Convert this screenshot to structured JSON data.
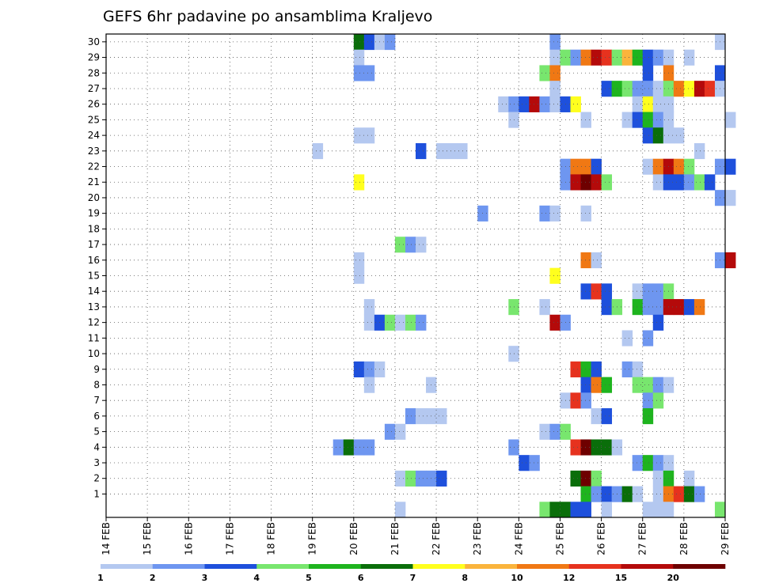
{
  "chart_data": {
    "type": "heatmap",
    "title": "GEFS 6hr padavine po ansamblima Kraljevo",
    "xlabel": "",
    "ylabel": "",
    "grid": true,
    "x_ticks": [
      "14 FEB",
      "15 FEB",
      "16 FEB",
      "17 FEB",
      "18 FEB",
      "19 FEB",
      "20 FEB",
      "21 FEB",
      "22 FEB",
      "23 FEB",
      "24 FEB",
      "25 FEB",
      "26 FEB",
      "27 FEB",
      "28 FEB",
      "29 FEB"
    ],
    "xlim": [
      "14 FEB",
      "29 FEB"
    ],
    "time_step_hours": 6,
    "y_ticks": [
      1,
      2,
      3,
      4,
      5,
      6,
      7,
      8,
      9,
      10,
      11,
      12,
      13,
      14,
      15,
      16,
      17,
      18,
      19,
      20,
      21,
      22,
      23,
      24,
      25,
      26,
      27,
      28,
      29,
      30
    ],
    "ylim": [
      0,
      30
    ],
    "legend": {
      "placement": "bottom",
      "levels": [
        1,
        2,
        3,
        4,
        5,
        6,
        7,
        8,
        10,
        12,
        15,
        20
      ],
      "colors": [
        "#b4c8f0",
        "#6e96f0",
        "#1e50dc",
        "#78e66e",
        "#1eb41e",
        "#0a6e0a",
        "#ffff1e",
        "#fab43c",
        "#f07814",
        "#e6321e",
        "#b40a0a",
        "#6e0000"
      ]
    },
    "cells": [
      {
        "member": 30,
        "start": "20 FEB 00",
        "steps": [
          6,
          3,
          1,
          2
        ]
      },
      {
        "member": 30,
        "start": "24 FEB 18",
        "steps": [
          2
        ]
      },
      {
        "member": 30,
        "start": "28 FEB 18",
        "steps": [
          1
        ]
      },
      {
        "member": 29,
        "start": "20 FEB 00",
        "steps": [
          1
        ]
      },
      {
        "member": 29,
        "start": "24 FEB 18",
        "steps": [
          1,
          4,
          2,
          9,
          11,
          10,
          4,
          8,
          5,
          3,
          2,
          1,
          0,
          1
        ]
      },
      {
        "member": 28,
        "start": "20 FEB 00",
        "steps": [
          2,
          2
        ]
      },
      {
        "member": 28,
        "start": "24 FEB 12",
        "steps": [
          4,
          9
        ]
      },
      {
        "member": 28,
        "start": "27 FEB 00",
        "steps": [
          3,
          0,
          9
        ]
      },
      {
        "member": 28,
        "start": "28 FEB 18",
        "steps": [
          3
        ]
      },
      {
        "member": 27,
        "start": "24 FEB 18",
        "steps": [
          1
        ]
      },
      {
        "member": 27,
        "start": "26 FEB 00",
        "steps": [
          3,
          5,
          4,
          2,
          2,
          1,
          4,
          9,
          7,
          11,
          10,
          1
        ]
      },
      {
        "member": 26,
        "start": "23 FEB 12",
        "steps": [
          1,
          2,
          3,
          11,
          2,
          1,
          3,
          7
        ]
      },
      {
        "member": 26,
        "start": "26 FEB 18",
        "steps": [
          1,
          7,
          1,
          1
        ]
      },
      {
        "member": 25,
        "start": "23 FEB 18",
        "steps": [
          1
        ]
      },
      {
        "member": 25,
        "start": "25 FEB 12",
        "steps": [
          1
        ]
      },
      {
        "member": 25,
        "start": "26 FEB 12",
        "steps": [
          1,
          3,
          5,
          2,
          1
        ]
      },
      {
        "member": 25,
        "start": "29 FEB 00",
        "steps": [
          1
        ]
      },
      {
        "member": 24,
        "start": "20 FEB 00",
        "steps": [
          1,
          1
        ]
      },
      {
        "member": 24,
        "start": "27 FEB 00",
        "steps": [
          3,
          6,
          1,
          1
        ]
      },
      {
        "member": 23,
        "start": "19 FEB 00",
        "steps": [
          1
        ]
      },
      {
        "member": 23,
        "start": "21 FEB 12",
        "steps": [
          3,
          0,
          1,
          1,
          1
        ]
      },
      {
        "member": 23,
        "start": "28 FEB 06",
        "steps": [
          1
        ]
      },
      {
        "member": 22,
        "start": "25 FEB 00",
        "steps": [
          2,
          9,
          9,
          3
        ]
      },
      {
        "member": 22,
        "start": "27 FEB 00",
        "steps": [
          1,
          9,
          11,
          9,
          4
        ]
      },
      {
        "member": 22,
        "start": "28 FEB 18",
        "steps": [
          2,
          3
        ]
      },
      {
        "member": 21,
        "start": "20 FEB 00",
        "steps": [
          7
        ]
      },
      {
        "member": 21,
        "start": "25 FEB 00",
        "steps": [
          2,
          11,
          12,
          11,
          4
        ]
      },
      {
        "member": 21,
        "start": "27 FEB 06",
        "steps": [
          1,
          3,
          3,
          2,
          4,
          3
        ]
      },
      {
        "member": 20,
        "start": "28 FEB 18",
        "steps": [
          2,
          1
        ]
      },
      {
        "member": 19,
        "start": "23 FEB 00",
        "steps": [
          2
        ]
      },
      {
        "member": 19,
        "start": "24 FEB 12",
        "steps": [
          2,
          1
        ]
      },
      {
        "member": 19,
        "start": "25 FEB 12",
        "steps": [
          1
        ]
      },
      {
        "member": 17,
        "start": "21 FEB 00",
        "steps": [
          4,
          2,
          1
        ]
      },
      {
        "member": 16,
        "start": "20 FEB 00",
        "steps": [
          1
        ]
      },
      {
        "member": 16,
        "start": "25 FEB 12",
        "steps": [
          9,
          1
        ]
      },
      {
        "member": 16,
        "start": "28 FEB 18",
        "steps": [
          2,
          11
        ]
      },
      {
        "member": 15,
        "start": "20 FEB 00",
        "steps": [
          1
        ]
      },
      {
        "member": 15,
        "start": "24 FEB 18",
        "steps": [
          7
        ]
      },
      {
        "member": 14,
        "start": "25 FEB 12",
        "steps": [
          3,
          10,
          3
        ]
      },
      {
        "member": 14,
        "start": "26 FEB 18",
        "steps": [
          1,
          2,
          2,
          4
        ]
      },
      {
        "member": 13,
        "start": "20 FEB 06",
        "steps": [
          1
        ]
      },
      {
        "member": 13,
        "start": "23 FEB 18",
        "steps": [
          4
        ]
      },
      {
        "member": 13,
        "start": "24 FEB 12",
        "steps": [
          1
        ]
      },
      {
        "member": 13,
        "start": "26 FEB 00",
        "steps": [
          3,
          4,
          0,
          5,
          2,
          2,
          11,
          11,
          3,
          9
        ]
      },
      {
        "member": 12,
        "start": "20 FEB 06",
        "steps": [
          1,
          3,
          4,
          1,
          4,
          2
        ]
      },
      {
        "member": 12,
        "start": "24 FEB 18",
        "steps": [
          11,
          2
        ]
      },
      {
        "member": 12,
        "start": "27 FEB 06",
        "steps": [
          3
        ]
      },
      {
        "member": 11,
        "start": "26 FEB 12",
        "steps": [
          1,
          0,
          2
        ]
      },
      {
        "member": 10,
        "start": "23 FEB 18",
        "steps": [
          1
        ]
      },
      {
        "member": 9,
        "start": "20 FEB 00",
        "steps": [
          3,
          2,
          1
        ]
      },
      {
        "member": 9,
        "start": "25 FEB 06",
        "steps": [
          10,
          5,
          3
        ]
      },
      {
        "member": 9,
        "start": "26 FEB 12",
        "steps": [
          2,
          1
        ]
      },
      {
        "member": 8,
        "start": "20 FEB 06",
        "steps": [
          1
        ]
      },
      {
        "member": 8,
        "start": "21 FEB 18",
        "steps": [
          1
        ]
      },
      {
        "member": 8,
        "start": "25 FEB 12",
        "steps": [
          3,
          9,
          5
        ]
      },
      {
        "member": 8,
        "start": "26 FEB 18",
        "steps": [
          4,
          4,
          2,
          1
        ]
      },
      {
        "member": 7,
        "start": "25 FEB 00",
        "steps": [
          1,
          10,
          2
        ]
      },
      {
        "member": 7,
        "start": "27 FEB 00",
        "steps": [
          2,
          4
        ]
      },
      {
        "member": 6,
        "start": "21 FEB 06",
        "steps": [
          2,
          1,
          1,
          1
        ]
      },
      {
        "member": 6,
        "start": "25 FEB 18",
        "steps": [
          1,
          3
        ]
      },
      {
        "member": 6,
        "start": "27 FEB 00",
        "steps": [
          5
        ]
      },
      {
        "member": 5,
        "start": "20 FEB 18",
        "steps": [
          2,
          1
        ]
      },
      {
        "member": 5,
        "start": "24 FEB 12",
        "steps": [
          1,
          2,
          4
        ]
      },
      {
        "member": 4,
        "start": "19 FEB 12",
        "steps": [
          2,
          6,
          2,
          2
        ]
      },
      {
        "member": 4,
        "start": "23 FEB 18",
        "steps": [
          2
        ]
      },
      {
        "member": 4,
        "start": "25 FEB 06",
        "steps": [
          10,
          12,
          6,
          6,
          1
        ]
      },
      {
        "member": 3,
        "start": "24 FEB 00",
        "steps": [
          3,
          2
        ]
      },
      {
        "member": 3,
        "start": "26 FEB 18",
        "steps": [
          2,
          5,
          2
        ]
      },
      {
        "member": 3,
        "start": "27 FEB 12",
        "steps": [
          1
        ]
      },
      {
        "member": 2,
        "start": "21 FEB 00",
        "steps": [
          1,
          4,
          2,
          2,
          3
        ]
      },
      {
        "member": 2,
        "start": "25 FEB 06",
        "steps": [
          6,
          12,
          4
        ]
      },
      {
        "member": 2,
        "start": "27 FEB 06",
        "steps": [
          1,
          5,
          0,
          1
        ]
      },
      {
        "member": 1,
        "start": "25 FEB 12",
        "steps": [
          5,
          2,
          3,
          2,
          6,
          1
        ]
      },
      {
        "member": 1,
        "start": "27 FEB 06",
        "steps": [
          1,
          9,
          10,
          6,
          2
        ]
      },
      {
        "member": 0,
        "start": "24 FEB 12",
        "steps": [
          4,
          6,
          6,
          3,
          3
        ]
      },
      {
        "member": 0,
        "start": "26 FEB 00",
        "steps": [
          1
        ]
      },
      {
        "member": 0,
        "start": "27 FEB 00",
        "steps": [
          1,
          1,
          1
        ]
      },
      {
        "member": 0,
        "start": "28 FEB 18",
        "steps": [
          4
        ]
      },
      {
        "member": 0,
        "start": "21 FEB 00",
        "steps": [
          1
        ]
      }
    ]
  }
}
